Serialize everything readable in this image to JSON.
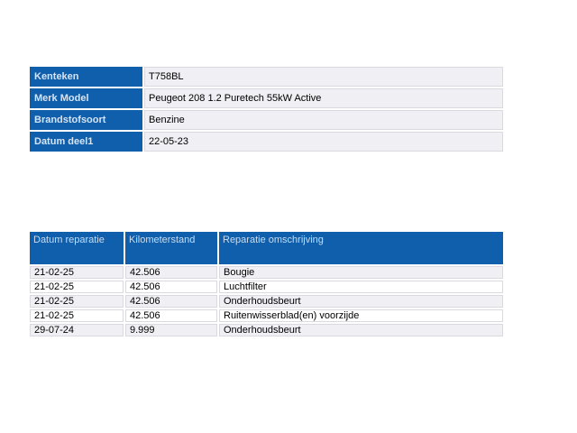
{
  "colors": {
    "header_blue": "#0F5FAD",
    "header_label_text": "#D6E4F4",
    "repairs_header_text": "#C9DCF0",
    "cell_background": "#F0EFF4",
    "cell_border": "#DAD9DF",
    "page_background": "#FFFFFF",
    "body_text": "#000000"
  },
  "vehicle_table": {
    "rows": [
      {
        "label": "Kenteken",
        "value": "T758BL"
      },
      {
        "label": "Merk Model",
        "value": "Peugeot 208 1.2 Puretech 55kW Active"
      },
      {
        "label": "Brandstofsoort",
        "value": "Benzine"
      },
      {
        "label": "Datum deel1",
        "value": "22-05-23"
      }
    ]
  },
  "repairs_table": {
    "columns": [
      "Datum reparatie",
      "Kilometerstand",
      "Reparatie omschrijving"
    ],
    "rows": [
      {
        "date": "21-02-25",
        "km": "42.506",
        "description": "Bougie"
      },
      {
        "date": "21-02-25",
        "km": "42.506",
        "description": "Luchtfilter"
      },
      {
        "date": "21-02-25",
        "km": "42.506",
        "description": "Onderhoudsbeurt"
      },
      {
        "date": "21-02-25",
        "km": "42.506",
        "description": "Ruitenwisserblad(en) voorzijde"
      },
      {
        "date": "29-07-24",
        "km": "9.999",
        "description": "Onderhoudsbeurt"
      }
    ]
  }
}
